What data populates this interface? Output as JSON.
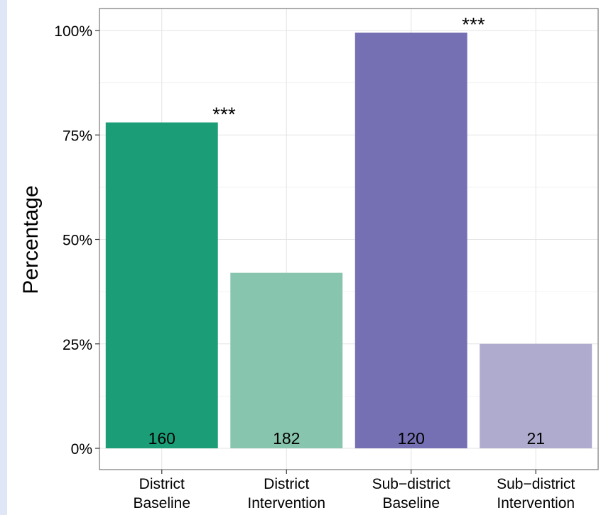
{
  "chart_data": {
    "type": "bar",
    "title": "",
    "xlabel": "",
    "ylabel": "Percentage",
    "ylim": [
      0,
      1.0
    ],
    "y_ticks": [
      0,
      0.25,
      0.5,
      0.75,
      1.0
    ],
    "y_tick_labels": [
      "0%",
      "25%",
      "50%",
      "75%",
      "100%"
    ],
    "grid": true,
    "categories": [
      [
        "District",
        "Baseline"
      ],
      [
        "District",
        "Intervention"
      ],
      [
        "Sub−district",
        "Baseline"
      ],
      [
        "Sub−district",
        "Intervention"
      ]
    ],
    "values": [
      0.78,
      0.42,
      0.995,
      0.25
    ],
    "counts": [
      "160",
      "182",
      "120",
      "21"
    ],
    "significance": [
      "***",
      "",
      "***",
      ""
    ],
    "colors": [
      "#1b9e77",
      "#88c5ae",
      "#7570b3",
      "#afabcf"
    ]
  }
}
